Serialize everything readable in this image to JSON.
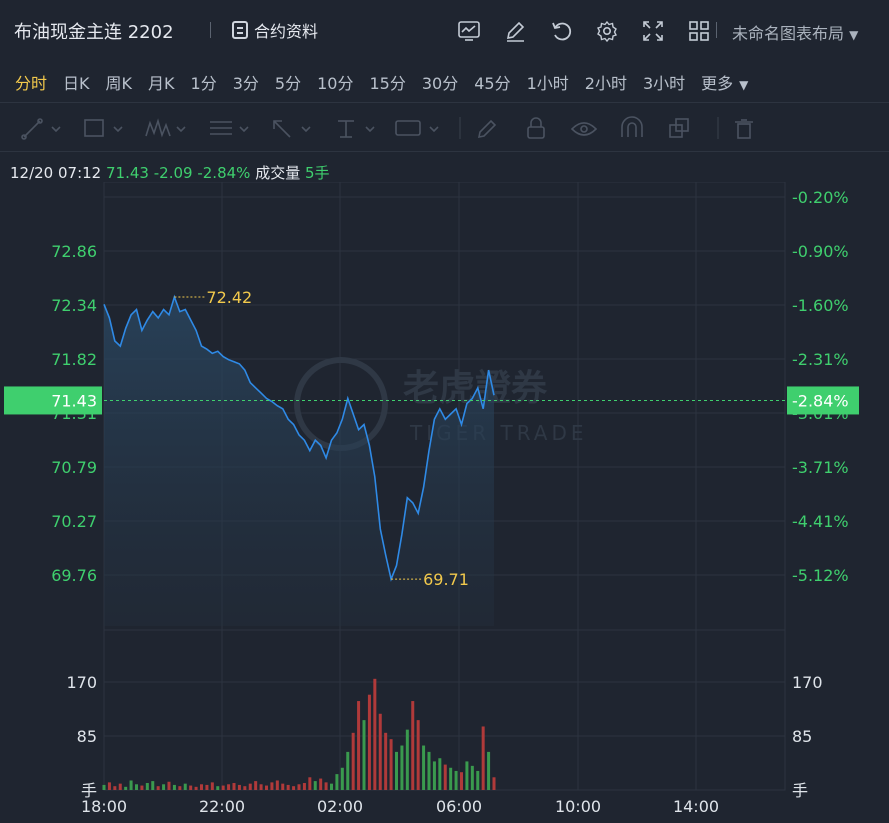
{
  "header": {
    "title": "布油现金主连 2202",
    "contract_label": "合约资料",
    "layout_label": "未命名图表布局"
  },
  "icons": [
    "chart-icon",
    "edit-icon",
    "refresh-icon",
    "gear-icon",
    "expand-icon",
    "grid-icon"
  ],
  "tabs": [
    "分时",
    "日K",
    "周K",
    "月K",
    "1分",
    "3分",
    "5分",
    "10分",
    "15分",
    "30分",
    "45分",
    "1小时",
    "2小时",
    "3小时",
    "更多"
  ],
  "active_tab": "分时",
  "info": {
    "datetime": "12/20 07:12",
    "price": "71.43",
    "change": "-2.09",
    "change_pct": "-2.84%",
    "volume_label": "成交量",
    "volume": "5手"
  },
  "chart_data": {
    "type": "line",
    "price_ticks": [
      "72.86",
      "72.34",
      "71.82",
      "71.31",
      "70.79",
      "70.27",
      "69.76"
    ],
    "pct_ticks": [
      "-0.20%",
      "-0.90%",
      "-1.60%",
      "-2.31%",
      "-3.01%",
      "-3.71%",
      "-4.41%",
      "-5.12%"
    ],
    "current_price": "71.43",
    "current_pct": "-2.84%",
    "high_label": "72.42",
    "low_label": "69.71",
    "volume_ticks": [
      "170",
      "85",
      "手"
    ],
    "time_ticks": [
      "18:00",
      "22:00",
      "02:00",
      "06:00",
      "10:00",
      "14:00"
    ],
    "price_series": [
      72.35,
      72.22,
      72.0,
      71.95,
      72.12,
      72.25,
      72.3,
      72.1,
      72.2,
      72.28,
      72.22,
      72.3,
      72.25,
      72.42,
      72.28,
      72.3,
      72.2,
      72.1,
      71.95,
      71.92,
      71.88,
      71.9,
      71.85,
      71.82,
      71.8,
      71.78,
      71.72,
      71.6,
      71.55,
      71.5,
      71.45,
      71.42,
      71.38,
      71.35,
      71.25,
      71.2,
      71.1,
      71.05,
      70.95,
      71.05,
      71.0,
      70.88,
      71.05,
      71.12,
      71.25,
      71.45,
      71.3,
      71.15,
      71.2,
      71.0,
      70.7,
      70.2,
      69.95,
      69.72,
      69.85,
      70.15,
      70.5,
      70.45,
      70.35,
      70.6,
      70.95,
      71.25,
      71.35,
      71.25,
      71.3,
      71.35,
      71.2,
      71.4,
      71.45,
      71.55,
      71.35,
      71.72,
      71.48
    ],
    "volume_series": [
      8,
      12,
      6,
      10,
      5,
      15,
      9,
      7,
      11,
      14,
      6,
      9,
      13,
      8,
      6,
      10,
      7,
      5,
      9,
      8,
      12,
      6,
      7,
      9,
      11,
      8,
      6,
      10,
      14,
      9,
      7,
      12,
      15,
      10,
      8,
      6,
      9,
      11,
      20,
      14,
      18,
      12,
      10,
      25,
      35,
      60,
      90,
      140,
      110,
      150,
      175,
      120,
      90,
      80,
      60,
      70,
      95,
      140,
      110,
      70,
      60,
      45,
      50,
      40,
      35,
      30,
      28,
      45,
      38,
      30,
      100,
      60,
      20
    ]
  }
}
